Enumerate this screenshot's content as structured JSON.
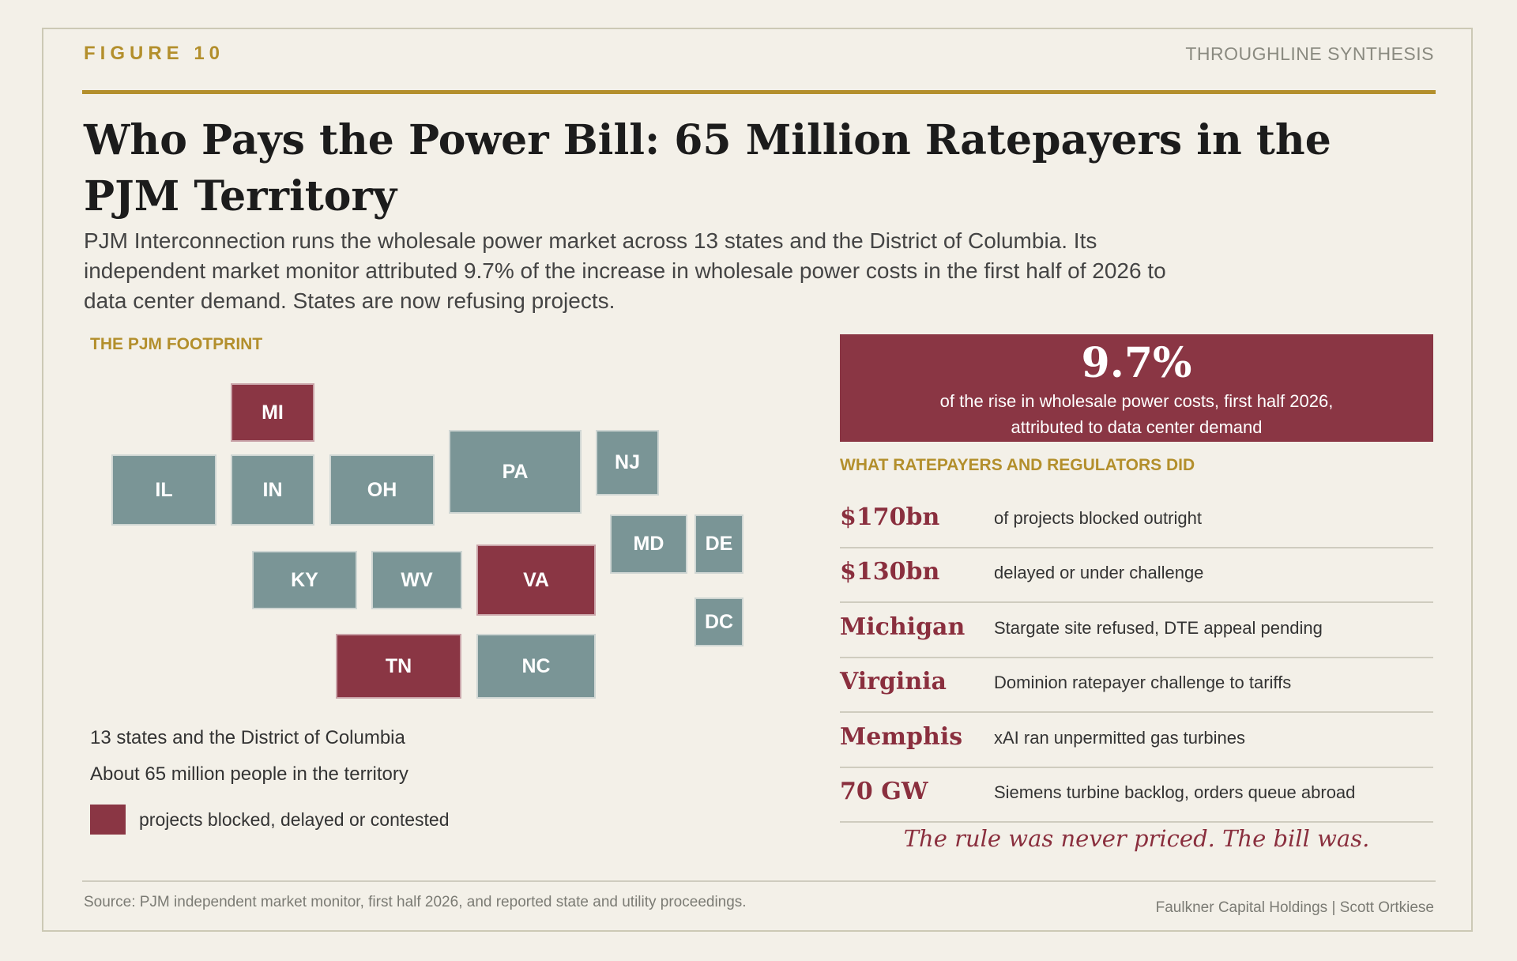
{
  "header": {
    "figure_label": "FIGURE 10",
    "brand": "THROUGHLINE SYNTHESIS"
  },
  "title": "Who Pays the Power Bill: 65 Million Ratepayers in the PJM Territory",
  "subtitle": "PJM Interconnection runs the wholesale power market across 13 states and the District of Columbia. Its independent market monitor attributed 9.7% of the increase in wholesale power costs in the first half of 2026 to data center demand. States are now refusing projects.",
  "map": {
    "heading": "THE PJM FOOTPRINT",
    "colors": {
      "default": "#7a9596",
      "highlighted": "#8a3644"
    },
    "states": [
      {
        "abbr": "MI",
        "highlighted": true
      },
      {
        "abbr": "IL",
        "highlighted": false
      },
      {
        "abbr": "IN",
        "highlighted": false
      },
      {
        "abbr": "OH",
        "highlighted": false
      },
      {
        "abbr": "PA",
        "highlighted": false
      },
      {
        "abbr": "NJ",
        "highlighted": false
      },
      {
        "abbr": "MD",
        "highlighted": false
      },
      {
        "abbr": "DE",
        "highlighted": false
      },
      {
        "abbr": "KY",
        "highlighted": false
      },
      {
        "abbr": "WV",
        "highlighted": false
      },
      {
        "abbr": "VA",
        "highlighted": true
      },
      {
        "abbr": "DC",
        "highlighted": false
      },
      {
        "abbr": "TN",
        "highlighted": true
      },
      {
        "abbr": "NC",
        "highlighted": false
      }
    ],
    "notes": [
      "13 states and the District of Columbia",
      "About 65 million people in the territory"
    ],
    "legend": "projects blocked, delayed or contested"
  },
  "stat": {
    "value": "9.7%",
    "caption_line1": "of the rise in wholesale power costs, first half 2026,",
    "caption_line2": "attributed to data center demand"
  },
  "actions": {
    "heading": "WHAT RATEPAYERS AND REGULATORS DID",
    "rows": [
      {
        "key": "$170bn",
        "desc": "of projects blocked outright"
      },
      {
        "key": "$130bn",
        "desc": "delayed or under challenge"
      },
      {
        "key": "Michigan",
        "desc": "Stargate site refused, DTE appeal pending"
      },
      {
        "key": "Virginia",
        "desc": "Dominion ratepayer challenge to tariffs"
      },
      {
        "key": "Memphis",
        "desc": "xAI ran unpermitted gas turbines"
      },
      {
        "key": "70 GW",
        "desc": "Siemens turbine backlog, orders queue abroad"
      }
    ],
    "closing": "The rule was never priced. The bill was."
  },
  "footer": {
    "source": "Source: PJM independent market monitor, first half 2026, and reported state and utility proceedings.",
    "credit": "Faulkner Capital Holdings  |  Scott Ortkiese"
  }
}
